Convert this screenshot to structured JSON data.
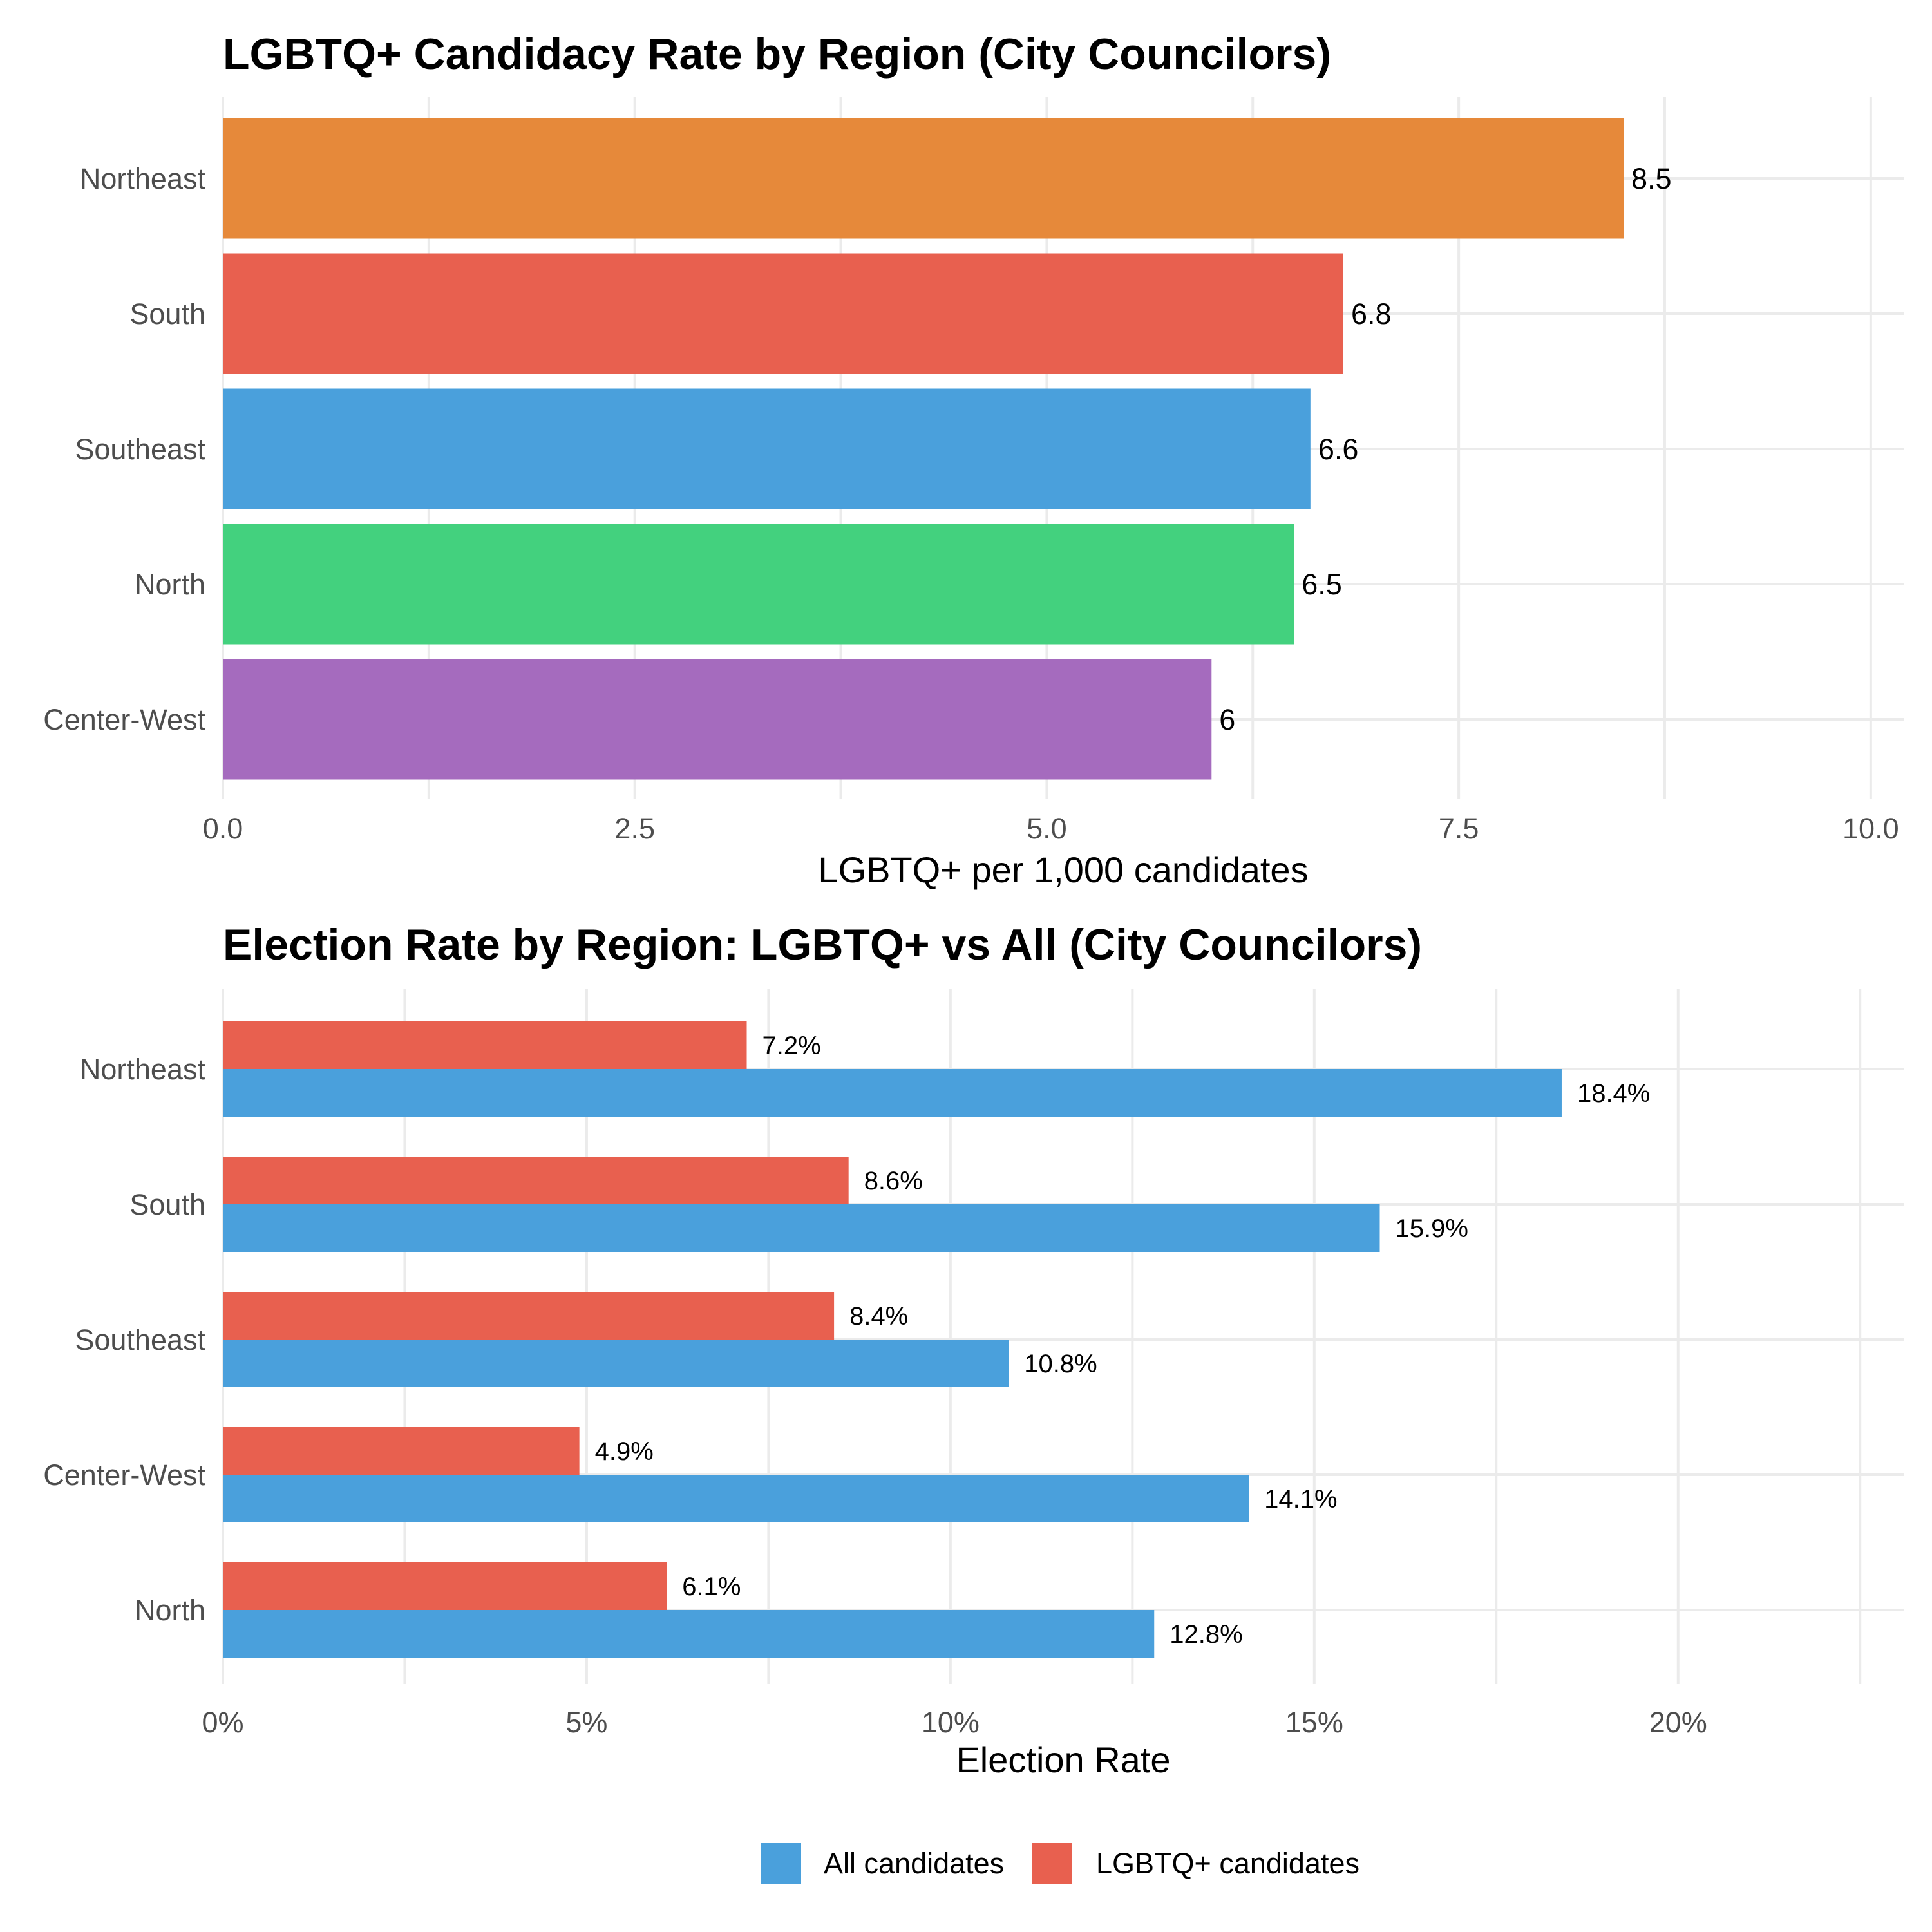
{
  "chart_data": [
    {
      "type": "bar",
      "orientation": "horizontal",
      "title": "LGBTQ+ Candidacy Rate by Region (City Councilors)",
      "xlabel": "LGBTQ+ per 1,000 candidates",
      "ylabel": "",
      "categories": [
        "Northeast",
        "South",
        "Southeast",
        "North",
        "Center-West"
      ],
      "values": [
        8.5,
        6.8,
        6.6,
        6.5,
        6.0
      ],
      "value_labels": [
        "8.5",
        "6.8",
        "6.6",
        "6.5",
        "6"
      ],
      "colors": [
        "#E6893A",
        "#E8604F",
        "#4AA0DC",
        "#43D17E",
        "#A56BBE"
      ],
      "xlim": [
        0,
        10.2
      ],
      "xticks": [
        0,
        2.5,
        5,
        7.5,
        10
      ],
      "xtick_labels": [
        "0.0",
        "2.5",
        "5.0",
        "7.5",
        "10.0"
      ],
      "grid": true
    },
    {
      "type": "bar",
      "orientation": "horizontal",
      "grouped": true,
      "title": "Election Rate by Region: LGBTQ+ vs All (City Councilors)",
      "xlabel": "Election Rate",
      "ylabel": "",
      "categories": [
        "Northeast",
        "South",
        "Southeast",
        "Center-West",
        "North"
      ],
      "series": [
        {
          "name": "LGBTQ+ candidates",
          "color": "#E8604F",
          "values": [
            7.2,
            8.6,
            8.4,
            4.9,
            6.1
          ],
          "value_labels": [
            "7.2%",
            "8.6%",
            "8.4%",
            "4.9%",
            "6.1%"
          ]
        },
        {
          "name": "All candidates",
          "color": "#4AA0DC",
          "values": [
            18.4,
            15.9,
            10.8,
            14.1,
            12.8
          ],
          "value_labels": [
            "18.4%",
            "15.9%",
            "10.8%",
            "14.1%",
            "12.8%"
          ]
        }
      ],
      "xlim": [
        0,
        23.1
      ],
      "xticks": [
        0,
        5,
        10,
        15,
        20
      ],
      "xtick_labels": [
        "0%",
        "5%",
        "10%",
        "15%",
        "20%"
      ],
      "grid": true,
      "legend": {
        "position": "bottom",
        "entries": [
          {
            "label": "All candidates",
            "color": "#4AA0DC"
          },
          {
            "label": "LGBTQ+ candidates",
            "color": "#E8604F"
          }
        ]
      }
    }
  ]
}
